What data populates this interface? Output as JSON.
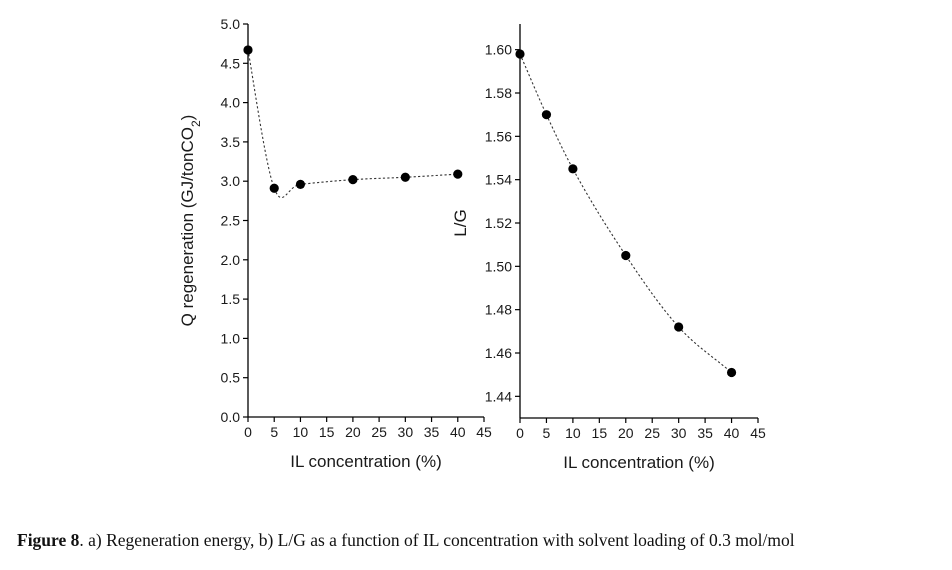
{
  "chart_data": [
    {
      "type": "line",
      "xlabel": "IL concentration (%)",
      "ylabel_main": "Q regeneration (GJ/tonCO",
      "ylabel_sub": "2",
      "ylabel_close": ")",
      "xlim": [
        0,
        45
      ],
      "ylim": [
        0,
        5.0
      ],
      "x_ticks": [
        "0",
        "5",
        "10",
        "15",
        "20",
        "25",
        "30",
        "35",
        "40",
        "45"
      ],
      "y_ticks": [
        "0.0",
        "0.5",
        "1.0",
        "1.5",
        "2.0",
        "2.5",
        "3.0",
        "3.5",
        "4.0",
        "4.5",
        "5.0"
      ],
      "grid": false,
      "series": [
        {
          "x": [
            0,
            5,
            10,
            20,
            30,
            40
          ],
          "y": [
            4.67,
            2.91,
            2.96,
            3.02,
            3.05,
            3.09
          ]
        }
      ]
    },
    {
      "type": "line",
      "xlabel": "IL concentration (%)",
      "ylabel": "L/G",
      "xlim": [
        0,
        45
      ],
      "ylim": [
        1.43,
        1.61
      ],
      "x_ticks": [
        "0",
        "5",
        "10",
        "15",
        "20",
        "25",
        "30",
        "35",
        "40",
        "45"
      ],
      "y_ticks": [
        "1.44",
        "1.46",
        "1.48",
        "1.50",
        "1.52",
        "1.54",
        "1.56",
        "1.58",
        "1.60"
      ],
      "grid": false,
      "series": [
        {
          "x": [
            0,
            5,
            10,
            20,
            30,
            40
          ],
          "y": [
            1.598,
            1.57,
            1.545,
            1.505,
            1.472,
            1.451
          ]
        }
      ]
    }
  ],
  "caption": {
    "label": "Figure 8",
    "text": ". a) Regeneration energy, b) L/G as a function of IL concentration with solvent loading of 0.3 mol/mol"
  }
}
